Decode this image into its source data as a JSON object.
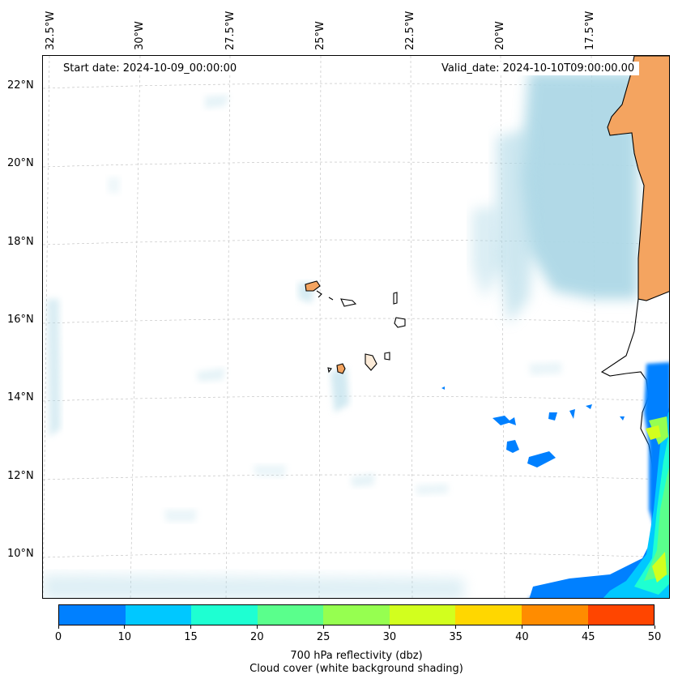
{
  "map": {
    "start_date": "Start date: 2024-10-09_00:00:00",
    "valid_date": "Valid_date: 2024-10-10T09:00:00.00",
    "lon_labels": [
      "32.5°W",
      "30°W",
      "27.5°W",
      "25°W",
      "22.5°W",
      "20°W",
      "17.5°W"
    ],
    "lat_labels": [
      "22°N",
      "20°N",
      "18°N",
      "16°N",
      "14°N",
      "12°N",
      "10°N"
    ],
    "colors": {
      "land": "#f4a460",
      "cloud": "#add8e6",
      "coastline": "#000000",
      "gridline": "#bbbbbb"
    }
  },
  "colorbar": {
    "ticks": [
      "0",
      "10",
      "15",
      "20",
      "25",
      "30",
      "35",
      "40",
      "45",
      "50"
    ],
    "colors": [
      "#0080ff",
      "#00c8ff",
      "#1effd2",
      "#5aff8c",
      "#96ff50",
      "#d2ff1e",
      "#ffd700",
      "#ff8c00",
      "#ff4500"
    ],
    "label_line1": "700 hPa reflectivity (dbz)",
    "label_line2": "Cloud cover (white background shading)"
  }
}
